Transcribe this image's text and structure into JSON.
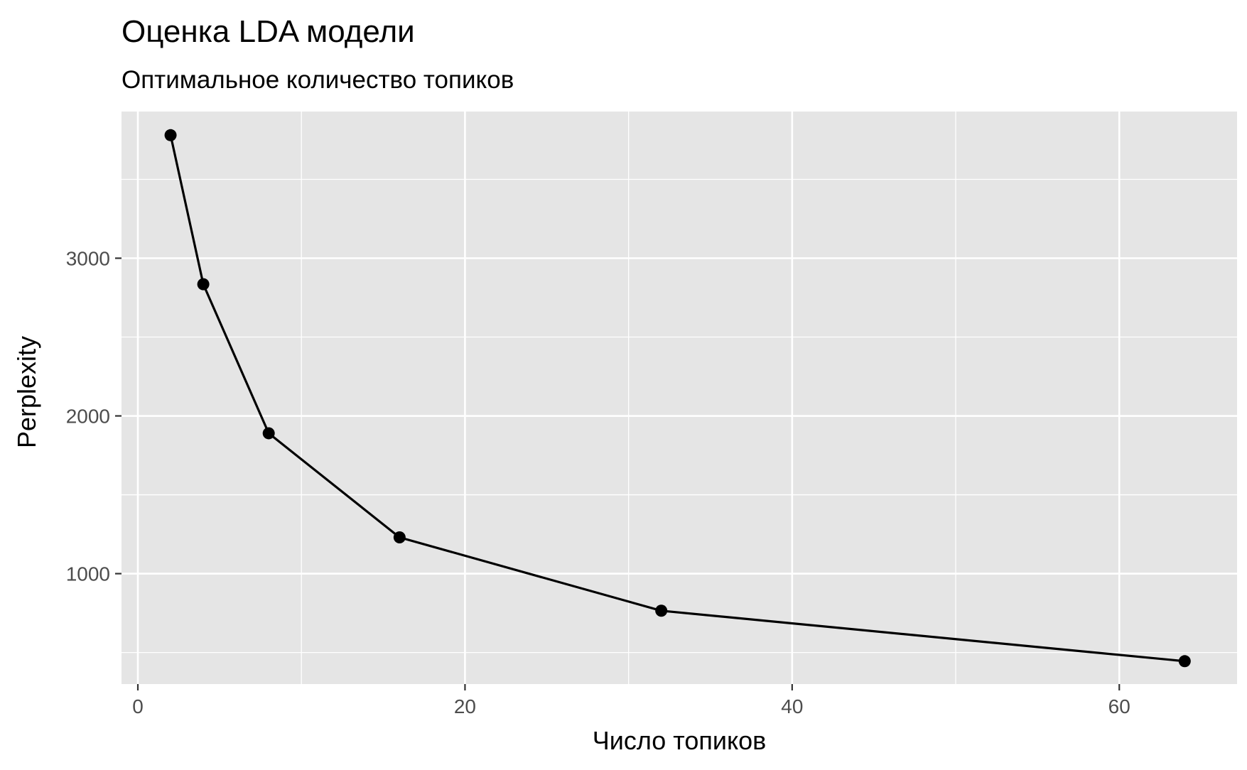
{
  "chart_data": {
    "type": "line",
    "title": "Оценка LDA модели",
    "subtitle": "Оптимальное количество топиков",
    "xlabel": "Число топиков",
    "ylabel": "Perplexity",
    "x": [
      2,
      4,
      8,
      16,
      32,
      64
    ],
    "series": [
      {
        "values": [
          3780,
          2835,
          1890,
          1230,
          765,
          445
        ]
      }
    ],
    "xlim": [
      -1,
      67.2
    ],
    "ylim": [
      300,
      3930
    ],
    "x_ticks": [
      0,
      20,
      40,
      60
    ],
    "x_minor_ticks": [
      10,
      30,
      50
    ],
    "y_ticks": [
      1000,
      2000,
      3000
    ],
    "y_minor_ticks": [
      500,
      1500,
      2500,
      3500
    ],
    "grid": true,
    "legend": "none",
    "colors": {
      "panel": "#e5e5e5",
      "grid": "#ffffff",
      "line": "#000000",
      "point": "#000000",
      "tick_text": "#4d4d4d",
      "tick_mark": "#333333"
    }
  }
}
